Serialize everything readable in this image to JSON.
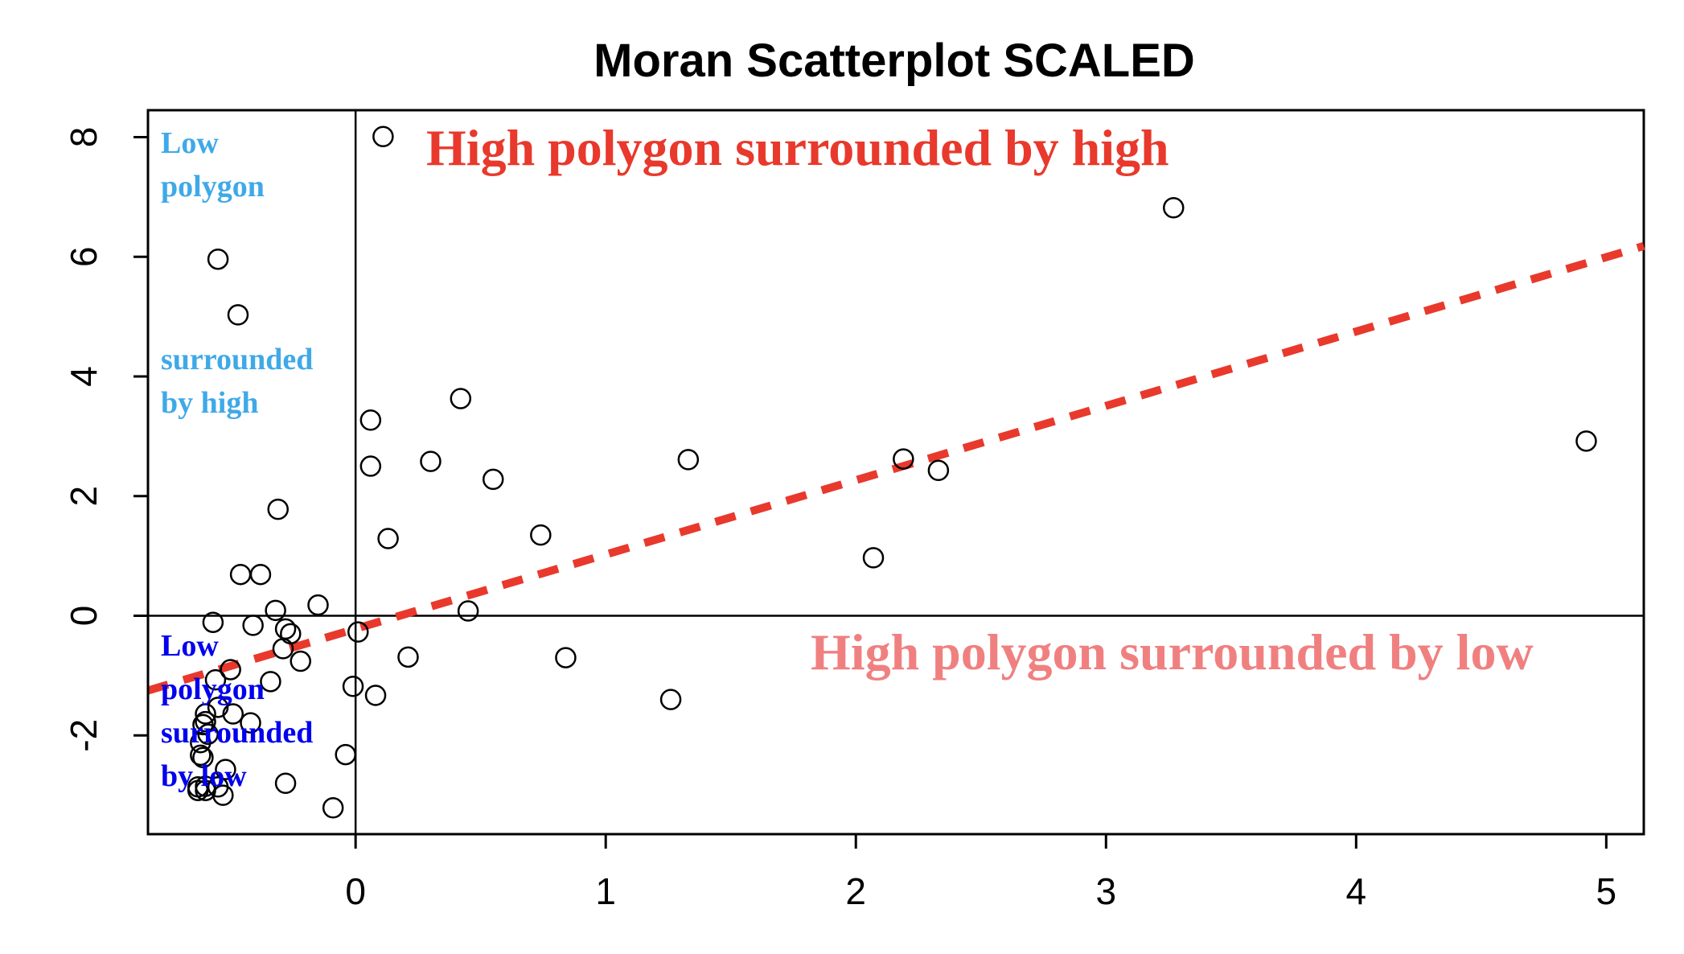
{
  "chart_data": {
    "type": "scatter",
    "title": "Moran Scatterplot SCALED",
    "xlabel": "",
    "ylabel": "",
    "xlim": [
      -0.83,
      5.15
    ],
    "ylim": [
      -3.65,
      8.45
    ],
    "x_ticks": [
      0,
      1,
      2,
      3,
      4,
      5
    ],
    "y_ticks": [
      -2,
      0,
      2,
      4,
      6,
      8
    ],
    "x_tick_labels": [
      "0",
      "1",
      "2",
      "3",
      "4",
      "5"
    ],
    "y_tick_labels": [
      "-2",
      "0",
      "2",
      "4",
      "6",
      "8"
    ],
    "reference_lines": {
      "vertical_x": 0,
      "horizontal_y": 0
    },
    "regression_line": {
      "color": "#e8392c",
      "style": "dashed",
      "points": [
        [
          -0.83,
          -1.25
        ],
        [
          5.15,
          6.18
        ]
      ]
    },
    "series": [
      {
        "marker": "open-circle",
        "color": "#000000",
        "x": [
          0.11,
          3.27,
          -0.55,
          -0.47,
          0.42,
          0.06,
          0.06,
          0.3,
          0.55,
          1.33,
          2.19,
          2.33,
          4.92,
          -0.31,
          0.13,
          0.74,
          2.07,
          -0.46,
          -0.38,
          -0.32,
          -0.15,
          -0.57,
          -0.41,
          -0.28,
          -0.26,
          -0.29,
          -0.22,
          0.01,
          0.45,
          0.21,
          0.84,
          1.26,
          -0.5,
          -0.56,
          -0.55,
          -0.34,
          -0.42,
          -0.49,
          -0.6,
          -0.6,
          -0.61,
          -0.59,
          -0.62,
          -0.01,
          0.08,
          -0.04,
          -0.28,
          -0.09,
          -0.63,
          -0.6,
          -0.52,
          -0.53,
          -0.63,
          -0.62,
          -0.61,
          -0.55,
          -0.6
        ],
        "y": [
          8.01,
          6.82,
          5.96,
          5.03,
          3.63,
          3.27,
          2.5,
          2.58,
          2.28,
          2.61,
          2.62,
          2.43,
          2.92,
          1.78,
          1.29,
          1.35,
          0.97,
          0.69,
          0.69,
          0.09,
          0.18,
          -0.11,
          -0.16,
          -0.22,
          -0.3,
          -0.55,
          -0.76,
          -0.27,
          0.08,
          -0.69,
          -0.7,
          -1.4,
          -0.9,
          -1.07,
          -1.53,
          -1.1,
          -1.79,
          -1.64,
          -1.64,
          -1.77,
          -1.82,
          -1.98,
          -2.12,
          -1.18,
          -1.33,
          -2.32,
          -2.8,
          -3.21,
          -2.92,
          -2.85,
          -2.57,
          -3.0,
          -2.86,
          -2.33,
          -2.37,
          -2.86,
          -2.92
        ]
      }
    ],
    "annotations": [
      {
        "id": "hh",
        "text": "High polygon surrounded by high",
        "color": "#e8392c"
      },
      {
        "id": "hl",
        "text": "High polygon surrounded by low",
        "color": "#f08080"
      },
      {
        "id": "lh",
        "lines": [
          "Low",
          "polygon",
          "surrounded",
          "by high"
        ],
        "color": "#3fa9e8"
      },
      {
        "id": "ll",
        "lines": [
          "Low",
          "polygon",
          "surrounded",
          "by low"
        ],
        "color": "#0000ee"
      }
    ]
  }
}
